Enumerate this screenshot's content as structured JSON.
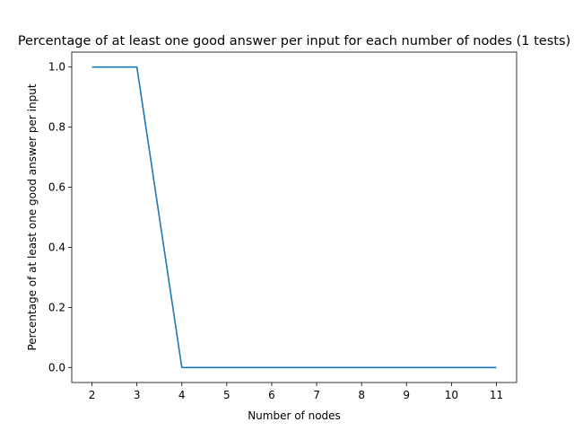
{
  "chart_data": {
    "type": "line",
    "title": "Percentage of at least one good answer per input for each number of nodes (1 tests)",
    "xlabel": "Number of nodes",
    "ylabel": "Percentage of at least one good answer per input",
    "x": [
      2,
      3,
      4,
      5,
      6,
      7,
      8,
      9,
      10,
      11
    ],
    "series": [
      {
        "values": [
          1.0,
          1.0,
          0.0,
          0.0,
          0.0,
          0.0,
          0.0,
          0.0,
          0.0,
          0.0
        ],
        "color": "#1f77b4"
      }
    ],
    "xlim": [
      1.55,
      11.45
    ],
    "ylim": [
      -0.05,
      1.05
    ],
    "xticks": [
      2,
      3,
      4,
      5,
      6,
      7,
      8,
      9,
      10,
      11
    ],
    "yticks": [
      0.0,
      0.2,
      0.4,
      0.6,
      0.8,
      1.0
    ],
    "ytick_labels": [
      "0.0",
      "0.2",
      "0.4",
      "0.6",
      "0.8",
      "1.0"
    ],
    "grid": false,
    "legend": "none"
  }
}
